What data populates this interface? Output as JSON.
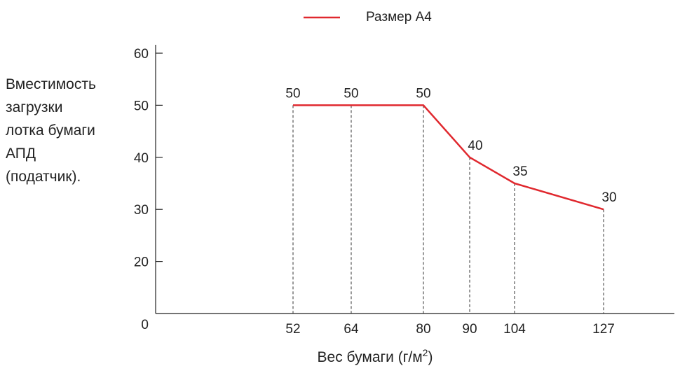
{
  "chart_data": {
    "type": "line",
    "title": "",
    "legend": {
      "placement": "top",
      "label": "Размер A4"
    },
    "xlabel": "Вес бумаги (г/м",
    "xlabel_sup": "2",
    "xlabel_close": ")",
    "ylabel_lines": [
      "Вместимость",
      "загрузки",
      "лотка бумаги",
      "АПД",
      "(податчик)."
    ],
    "y_ticks": [
      0,
      20,
      30,
      40,
      50,
      60
    ],
    "ylim": [
      10,
      60
    ],
    "x": [
      52,
      64,
      80,
      90,
      104,
      127
    ],
    "x_tick_labels": [
      "52",
      "64",
      "80",
      "90",
      "104",
      "127"
    ],
    "series": [
      {
        "name": "Размер A4",
        "color": "#e0282e",
        "values": [
          50,
          50,
          50,
          40,
          35,
          30
        ]
      }
    ],
    "data_labels": [
      "50",
      "50",
      "50",
      "40",
      "35",
      "30"
    ],
    "grid": false,
    "drop_lines": "dashed"
  }
}
